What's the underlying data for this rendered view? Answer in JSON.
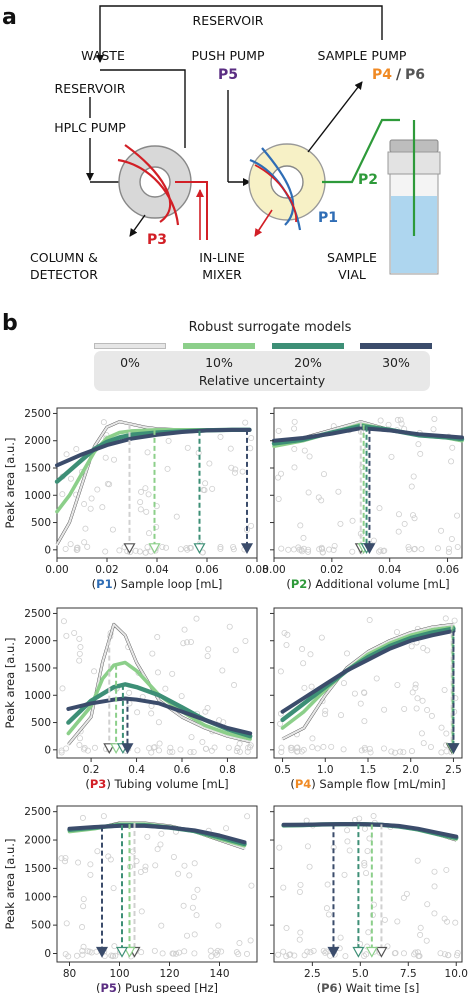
{
  "panel_a": {
    "label": "a",
    "reservoir_top": "RESERVOIR",
    "waste": "WASTE",
    "push_pump": "PUSH PUMP",
    "p5": "P5",
    "sample_pump": "SAMPLE PUMP",
    "p4": "P4",
    "slash": "/",
    "p6": "P6",
    "reservoir_left": "RESERVOIR",
    "hplc_pump": "HPLC PUMP",
    "p3": "P3",
    "column": "COLUMN &",
    "detector": "DETECTOR",
    "inline": "IN-LINE",
    "mixer": "MIXER",
    "p1": "P1",
    "p2": "P2",
    "sample": "SAMPLE",
    "vial": "VIAL"
  },
  "panel_b": {
    "label": "b",
    "legend_title": "Robust surrogate models",
    "legend_items": [
      "0%",
      "10%",
      "20%",
      "30%"
    ],
    "legend_sub": "Relative uncertainty",
    "ylabel": "Peak area [a.u.]",
    "xlabels": [
      {
        "open": "(",
        "p": "P1",
        "rest": ") Sample loop [mL]"
      },
      {
        "open": "(",
        "p": "P2",
        "rest": ") Additional volume [mL]"
      },
      {
        "open": "(",
        "p": "P3",
        "rest": ") Tubing volume [mL]"
      },
      {
        "open": "(",
        "p": "P4",
        "rest": ") Sample flow [mL/min]"
      },
      {
        "open": "(",
        "p": "P5",
        "rest": ") Push speed [Hz]"
      },
      {
        "open": "(",
        "p": "P6",
        "rest": ") Wait time [s]"
      }
    ]
  },
  "colors": {
    "p1": "#2f6db5",
    "p2": "#2e9a3a",
    "p3": "#d21f26",
    "p4": "#f08a24",
    "p5": "#5a2d82",
    "p6": "#555555",
    "u0": "#e6e6e6",
    "u10": "#8ccf8a",
    "u20": "#3d8f76",
    "u30": "#3b4c6b"
  },
  "chart_data": [
    {
      "type": "line",
      "xlim": [
        0.0,
        0.08
      ],
      "ylim": [
        -150,
        2600
      ],
      "xticks": [
        "0.00",
        "0.02",
        "0.04",
        "0.06",
        "0.08"
      ],
      "xtick_values": [
        0,
        0.02,
        0.04,
        0.06,
        0.08
      ],
      "yticks": [
        "0",
        "500",
        "1000",
        "1500",
        "2000",
        "2500"
      ],
      "series": [
        {
          "x": [
            0,
            0.005,
            0.01,
            0.015,
            0.02,
            0.025,
            0.03,
            0.035,
            0.04,
            0.05,
            0.06,
            0.07,
            0.077
          ],
          "values": [
            100,
            500,
            1200,
            1900,
            2250,
            2350,
            2300,
            2250,
            2220,
            2200,
            2200,
            2200,
            2200
          ]
        },
        {
          "x": [
            0,
            0.005,
            0.01,
            0.015,
            0.02,
            0.025,
            0.03,
            0.035,
            0.04,
            0.05,
            0.06,
            0.07,
            0.077
          ],
          "values": [
            700,
            1000,
            1400,
            1800,
            2050,
            2150,
            2180,
            2190,
            2200,
            2200,
            2200,
            2200,
            2200
          ]
        },
        {
          "x": [
            0,
            0.005,
            0.01,
            0.015,
            0.02,
            0.025,
            0.03,
            0.04,
            0.05,
            0.06,
            0.07,
            0.077
          ],
          "values": [
            1250,
            1450,
            1650,
            1850,
            1980,
            2060,
            2110,
            2150,
            2170,
            2190,
            2200,
            2200
          ]
        },
        {
          "x": [
            0,
            0.01,
            0.02,
            0.03,
            0.04,
            0.05,
            0.06,
            0.07,
            0.077
          ],
          "values": [
            1550,
            1750,
            1920,
            2040,
            2110,
            2160,
            2190,
            2200,
            2200
          ]
        }
      ],
      "optima": [
        0.029,
        0.039,
        0.057,
        0.076
      ]
    },
    {
      "type": "line",
      "xlim": [
        0.0,
        0.065
      ],
      "ylim": [
        -150,
        2600
      ],
      "xticks": [
        "0.00",
        "0.02",
        "0.04",
        "0.06"
      ],
      "xtick_values": [
        0,
        0.02,
        0.04,
        0.06
      ],
      "yticks": [
        "0",
        "500",
        "1000",
        "1500",
        "2000",
        "2500"
      ],
      "series": [
        {
          "x": [
            0,
            0.01,
            0.02,
            0.03,
            0.04,
            0.05,
            0.06,
            0.065
          ],
          "values": [
            1950,
            2050,
            2200,
            2350,
            2200,
            2100,
            2050,
            2000
          ]
        },
        {
          "x": [
            0,
            0.01,
            0.02,
            0.03,
            0.04,
            0.05,
            0.06,
            0.065
          ],
          "values": [
            1900,
            2000,
            2150,
            2300,
            2200,
            2100,
            2050,
            2000
          ]
        },
        {
          "x": [
            0,
            0.01,
            0.02,
            0.03,
            0.04,
            0.05,
            0.06,
            0.065
          ],
          "values": [
            1950,
            2020,
            2150,
            2270,
            2200,
            2100,
            2060,
            2030
          ]
        },
        {
          "x": [
            0,
            0.01,
            0.02,
            0.03,
            0.04,
            0.05,
            0.06,
            0.065
          ],
          "values": [
            2000,
            2050,
            2130,
            2230,
            2190,
            2120,
            2080,
            2060
          ]
        }
      ],
      "optima": [
        0.03,
        0.031,
        0.032,
        0.033
      ]
    },
    {
      "type": "line",
      "xlim": [
        0.05,
        0.93
      ],
      "ylim": [
        -150,
        2600
      ],
      "xticks": [
        "0.2",
        "0.4",
        "0.6",
        "0.8"
      ],
      "xtick_values": [
        0.2,
        0.4,
        0.6,
        0.8
      ],
      "yticks": [
        "0",
        "500",
        "1000",
        "1500",
        "2000",
        "2500"
      ],
      "series": [
        {
          "x": [
            0.1,
            0.2,
            0.25,
            0.3,
            0.35,
            0.4,
            0.5,
            0.6,
            0.7,
            0.8,
            0.9
          ],
          "values": [
            100,
            600,
            1600,
            2300,
            2100,
            1600,
            900,
            600,
            400,
            250,
            150
          ]
        },
        {
          "x": [
            0.1,
            0.2,
            0.25,
            0.3,
            0.35,
            0.4,
            0.5,
            0.6,
            0.7,
            0.8,
            0.9
          ],
          "values": [
            300,
            800,
            1300,
            1550,
            1600,
            1450,
            1000,
            700,
            450,
            300,
            200
          ]
        },
        {
          "x": [
            0.1,
            0.2,
            0.3,
            0.35,
            0.4,
            0.5,
            0.6,
            0.7,
            0.8,
            0.9
          ],
          "values": [
            500,
            900,
            1150,
            1200,
            1150,
            1000,
            780,
            550,
            380,
            250
          ]
        },
        {
          "x": [
            0.1,
            0.2,
            0.3,
            0.35,
            0.4,
            0.5,
            0.6,
            0.7,
            0.8,
            0.9
          ],
          "values": [
            750,
            850,
            920,
            940,
            920,
            850,
            700,
            550,
            400,
            300
          ]
        }
      ],
      "optima": [
        0.28,
        0.31,
        0.34,
        0.36
      ]
    },
    {
      "type": "line",
      "xlim": [
        0.4,
        2.6
      ],
      "ylim": [
        -150,
        2600
      ],
      "xticks": [
        "0.5",
        "1.0",
        "1.5",
        "2.0",
        "2.5"
      ],
      "xtick_values": [
        0.5,
        1.0,
        1.5,
        2.0,
        2.5
      ],
      "yticks": [
        "0",
        "500",
        "1000",
        "1500",
        "2000",
        "2500"
      ],
      "series": [
        {
          "x": [
            0.5,
            0.75,
            1.0,
            1.25,
            1.5,
            1.75,
            2.0,
            2.25,
            2.5
          ],
          "values": [
            200,
            400,
            1000,
            1500,
            1800,
            2000,
            2150,
            2250,
            2300
          ]
        },
        {
          "x": [
            0.5,
            0.75,
            1.0,
            1.25,
            1.5,
            1.75,
            2.0,
            2.25,
            2.5
          ],
          "values": [
            400,
            700,
            1100,
            1450,
            1750,
            1950,
            2100,
            2200,
            2250
          ]
        },
        {
          "x": [
            0.5,
            0.75,
            1.0,
            1.25,
            1.5,
            1.75,
            2.0,
            2.25,
            2.5
          ],
          "values": [
            550,
            850,
            1150,
            1450,
            1700,
            1900,
            2050,
            2150,
            2220
          ]
        },
        {
          "x": [
            0.5,
            0.75,
            1.0,
            1.25,
            1.5,
            1.75,
            2.0,
            2.25,
            2.5
          ],
          "values": [
            700,
            950,
            1200,
            1450,
            1650,
            1850,
            2000,
            2100,
            2180
          ]
        }
      ],
      "optima": [
        2.48,
        2.49,
        2.5,
        2.5
      ]
    },
    {
      "type": "line",
      "xlim": [
        75,
        155
      ],
      "ylim": [
        -150,
        2600
      ],
      "xticks": [
        "80",
        "100",
        "120",
        "140"
      ],
      "xtick_values": [
        80,
        100,
        120,
        140
      ],
      "yticks": [
        "0",
        "500",
        "1000",
        "1500",
        "2000",
        "2500"
      ],
      "series": [
        {
          "x": [
            80,
            90,
            100,
            110,
            120,
            130,
            140,
            150
          ],
          "values": [
            2150,
            2200,
            2300,
            2300,
            2250,
            2150,
            2000,
            1850
          ]
        },
        {
          "x": [
            80,
            90,
            100,
            110,
            120,
            130,
            140,
            150
          ],
          "values": [
            2150,
            2200,
            2280,
            2280,
            2230,
            2150,
            2020,
            1900
          ]
        },
        {
          "x": [
            80,
            90,
            100,
            110,
            120,
            130,
            140,
            150
          ],
          "values": [
            2180,
            2220,
            2260,
            2260,
            2220,
            2160,
            2050,
            1930
          ]
        },
        {
          "x": [
            80,
            90,
            100,
            110,
            120,
            130,
            140,
            150
          ],
          "values": [
            2200,
            2230,
            2250,
            2250,
            2220,
            2170,
            2080,
            1960
          ]
        }
      ],
      "optima": [
        106,
        104,
        101,
        93
      ]
    },
    {
      "type": "line",
      "xlim": [
        0.5,
        10.3
      ],
      "ylim": [
        -150,
        2600
      ],
      "xticks": [
        "2.5",
        "5.0",
        "7.5",
        "10.0"
      ],
      "xtick_values": [
        2.5,
        5.0,
        7.5,
        10.0
      ],
      "yticks": [
        "0",
        "500",
        "1000",
        "1500",
        "2000",
        "2500"
      ],
      "series": [
        {
          "x": [
            1,
            2,
            3,
            4,
            5,
            6,
            7,
            8,
            9,
            10
          ],
          "values": [
            2250,
            2260,
            2270,
            2280,
            2290,
            2280,
            2250,
            2200,
            2100,
            2000
          ]
        },
        {
          "x": [
            1,
            2,
            3,
            4,
            5,
            6,
            7,
            8,
            9,
            10
          ],
          "values": [
            2250,
            2260,
            2270,
            2280,
            2280,
            2270,
            2240,
            2180,
            2100,
            2020
          ]
        },
        {
          "x": [
            1,
            2,
            3,
            4,
            5,
            6,
            7,
            8,
            9,
            10
          ],
          "values": [
            2260,
            2265,
            2275,
            2280,
            2280,
            2270,
            2240,
            2190,
            2110,
            2040
          ]
        },
        {
          "x": [
            1,
            2,
            3,
            4,
            5,
            6,
            7,
            8,
            9,
            10
          ],
          "values": [
            2270,
            2270,
            2275,
            2280,
            2280,
            2270,
            2250,
            2200,
            2130,
            2060
          ]
        }
      ],
      "optima": [
        6.1,
        5.6,
        4.9,
        3.6
      ]
    }
  ]
}
